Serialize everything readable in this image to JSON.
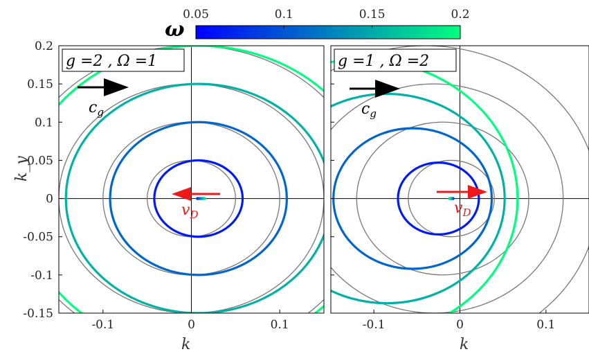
{
  "chart_data": {
    "type": "line",
    "colorbar": {
      "label": "ω",
      "range": [
        0.05,
        0.2
      ],
      "ticks": [
        "0.05",
        "0.1",
        "0.15",
        "0.2"
      ],
      "tick_values": [
        0.05,
        0.1,
        0.15,
        0.2
      ],
      "colors": [
        "#0000ff",
        "#00ff7f"
      ]
    },
    "panels": [
      {
        "label": "g =2 , Ω =1",
        "g": 2,
        "Omega": 1,
        "xlabel": "k",
        "ylabel": "k_y",
        "xlim": [
          -0.15,
          0.15
        ],
        "ylim": [
          -0.15,
          0.2
        ],
        "xticks": [
          -0.1,
          0,
          0.1
        ],
        "xtick_labels": [
          "-0.1",
          "0",
          "0.1"
        ],
        "yticks": [
          0.2,
          0.15,
          0.1,
          0.05,
          0,
          -0.05,
          -0.1,
          -0.15
        ],
        "ytick_labels": [
          "0.2",
          "0.15",
          "0.1",
          "0.05",
          "0",
          "-0.05",
          "-0.1",
          "-0.15"
        ],
        "gray_circles": [
          {
            "cx": 0,
            "cy": 0,
            "r": 0.05
          },
          {
            "cx": 0,
            "cy": 0,
            "r": 0.1
          },
          {
            "cx": 0,
            "cy": 0,
            "r": 0.15
          },
          {
            "cx": 0,
            "cy": 0,
            "r": 0.2
          }
        ],
        "colored_contours": [
          {
            "cx": 0.008,
            "cy": 0,
            "r": 0.05,
            "omega": 0.05
          },
          {
            "cx": 0.008,
            "cy": 0,
            "r": 0.1,
            "omega": 0.1
          },
          {
            "cx": 0.008,
            "cy": 0,
            "r": 0.15,
            "omega": 0.15
          },
          {
            "cx": 0.008,
            "cy": 0,
            "r": 0.2,
            "omega": 0.2
          }
        ],
        "center_dot_range": [
          0.007,
          0.015
        ],
        "cg_label": "c_g",
        "cg_direction": "right",
        "vd_label": "v_D",
        "vd_direction": "left"
      },
      {
        "label": "g =1 , Ω =2",
        "g": 1,
        "Omega": 2,
        "xlabel": "k",
        "ylabel": "",
        "xlim": [
          -0.15,
          0.15
        ],
        "ylim": [
          -0.15,
          0.2
        ],
        "xticks": [
          -0.1,
          0,
          0.1
        ],
        "xtick_labels": [
          "-0.1",
          "0",
          "0.1"
        ],
        "gray_circles": [
          {
            "cx": -0.01,
            "cy": 0,
            "r": 0.05
          },
          {
            "cx": -0.02,
            "cy": 0,
            "r": 0.1
          },
          {
            "cx": -0.03,
            "cy": 0,
            "r": 0.15
          },
          {
            "cx": -0.04,
            "cy": 0,
            "r": 0.2
          }
        ],
        "colored_contours": [
          {
            "cx": -0.025,
            "cy": 0,
            "r": 0.047,
            "omega": 0.05
          },
          {
            "cx": -0.055,
            "cy": 0,
            "r": 0.092,
            "omega": 0.1
          },
          {
            "cx": -0.085,
            "cy": 0,
            "r": 0.137,
            "omega": 0.15
          },
          {
            "cx": -0.115,
            "cy": 0,
            "r": 0.182,
            "omega": 0.2
          }
        ],
        "center_dot_range": [
          -0.008,
          -0.012
        ],
        "cg_label": "c_g",
        "cg_direction": "right",
        "vd_label": "v_D",
        "vd_direction": "right"
      }
    ]
  }
}
